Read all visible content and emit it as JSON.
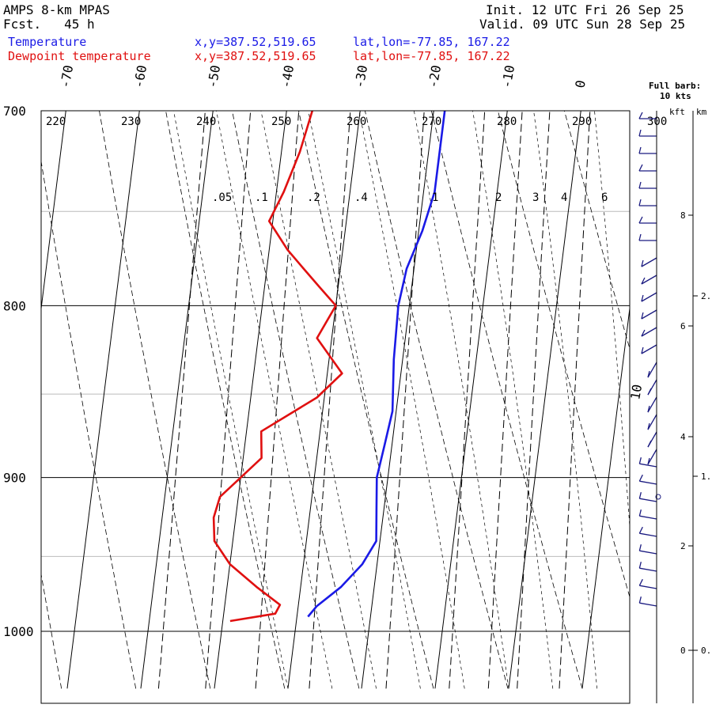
{
  "header": {
    "model": "AMPS 8-km MPAS",
    "fcst": "Fcst.   45 h",
    "init": "Init. 12 UTC Fri 26 Sep 25",
    "valid": "Valid. 09 UTC Sun 28 Sep 25"
  },
  "legend": {
    "temperature": "Temperature",
    "dewpoint": "Dewpoint temperature",
    "xy_temp": "x,y=387.52,519.65",
    "latlon_temp": "lat,lon=-77.85, 167.22",
    "xy_dew": "x,y=387.52,519.65",
    "latlon_dew": "lat,lon=-77.85, 167.22"
  },
  "barb_note": {
    "line1": "Full barb:",
    "line2": "10 kts"
  },
  "height_axes": {
    "kft_label": "kft",
    "km_label": "km"
  },
  "chart_data": {
    "type": "line",
    "skewt": true,
    "pressure_ticks": [
      "700",
      "800",
      "900",
      "1000"
    ],
    "temp_ticks": [
      "-70",
      "-60",
      "-50",
      "-40",
      "-30",
      "-20",
      "-10",
      "0",
      "10"
    ],
    "theta_labels": [
      "220",
      "230",
      "240",
      "250",
      "260",
      "270",
      "280",
      "290",
      "300"
    ],
    "mixing_ratio_labels": [
      ".05",
      ".1",
      ".2",
      ".4",
      "1",
      "2",
      "3",
      "4",
      "6"
    ],
    "kft_ticks": [
      "8",
      "6",
      "4",
      "2",
      "0"
    ],
    "km_ticks": [
      "2.",
      "1.",
      "0."
    ],
    "pressure_range": [
      700,
      1040
    ],
    "colors": {
      "temperature": "#1a1ae6",
      "dewpoint": "#e01010",
      "barb": "#1a1a80"
    },
    "series": [
      {
        "name": "Temperature",
        "points": [
          [
            700,
            -18.5
          ],
          [
            740,
            -18.5
          ],
          [
            760,
            -19.5
          ],
          [
            780,
            -21
          ],
          [
            800,
            -21.5
          ],
          [
            830,
            -21.2
          ],
          [
            860,
            -20.5
          ],
          [
            880,
            -21.0
          ],
          [
            900,
            -21.5
          ],
          [
            920,
            -21.0
          ],
          [
            940,
            -20.5
          ],
          [
            955,
            -22.0
          ],
          [
            970,
            -24.5
          ],
          [
            983,
            -27.5
          ],
          [
            990,
            -28.5
          ]
        ]
      },
      {
        "name": "Dewpoint temperature",
        "points": [
          [
            700,
            -36.5
          ],
          [
            720,
            -37.5
          ],
          [
            740,
            -39.0
          ],
          [
            755,
            -40.5
          ],
          [
            770,
            -37.5
          ],
          [
            780,
            -35.0
          ],
          [
            790,
            -32.5
          ],
          [
            800,
            -30.0
          ],
          [
            818,
            -32.0
          ],
          [
            838,
            -28.0
          ],
          [
            852,
            -31.0
          ],
          [
            872,
            -38.0
          ],
          [
            888,
            -37.5
          ],
          [
            900,
            -40.0
          ],
          [
            912,
            -42.5
          ],
          [
            925,
            -43.0
          ],
          [
            940,
            -42.5
          ],
          [
            955,
            -40.0
          ],
          [
            970,
            -36.0
          ],
          [
            982,
            -32.5
          ],
          [
            988,
            -33.0
          ],
          [
            993,
            -39.0
          ]
        ]
      }
    ]
  }
}
